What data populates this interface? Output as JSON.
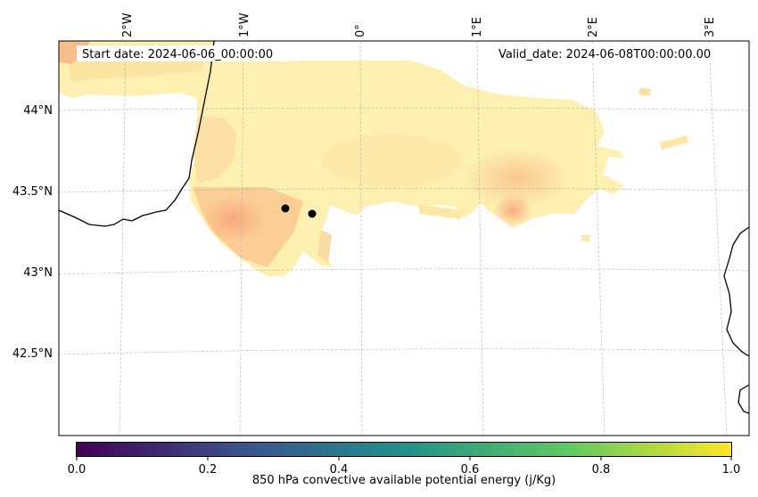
{
  "map": {
    "start_label": "Start date: 2024-06-06_00:00:00",
    "valid_label": "Valid_date: 2024-06-08T00:00:00.00",
    "lon_labels": [
      "2°W",
      "1°W",
      "0°",
      "1°E",
      "2°E",
      "3°E"
    ],
    "lat_labels": [
      "44°N",
      "43.5°N",
      "43°N",
      "42.5°N"
    ],
    "markers": [
      {
        "name": "marker-1"
      },
      {
        "name": "marker-2"
      }
    ]
  },
  "colorbar": {
    "title": "850 hPa convective available potential energy (j/Kg)",
    "ticks": [
      "0.0",
      "0.2",
      "0.4",
      "0.6",
      "0.8",
      "1.0"
    ],
    "colors": [
      "#440154",
      "#3b528b",
      "#21918c",
      "#5ec962",
      "#fde725"
    ],
    "field_colors": [
      "#fff5b8",
      "#fde7a0",
      "#fbcf85",
      "#f8b07a"
    ]
  }
}
